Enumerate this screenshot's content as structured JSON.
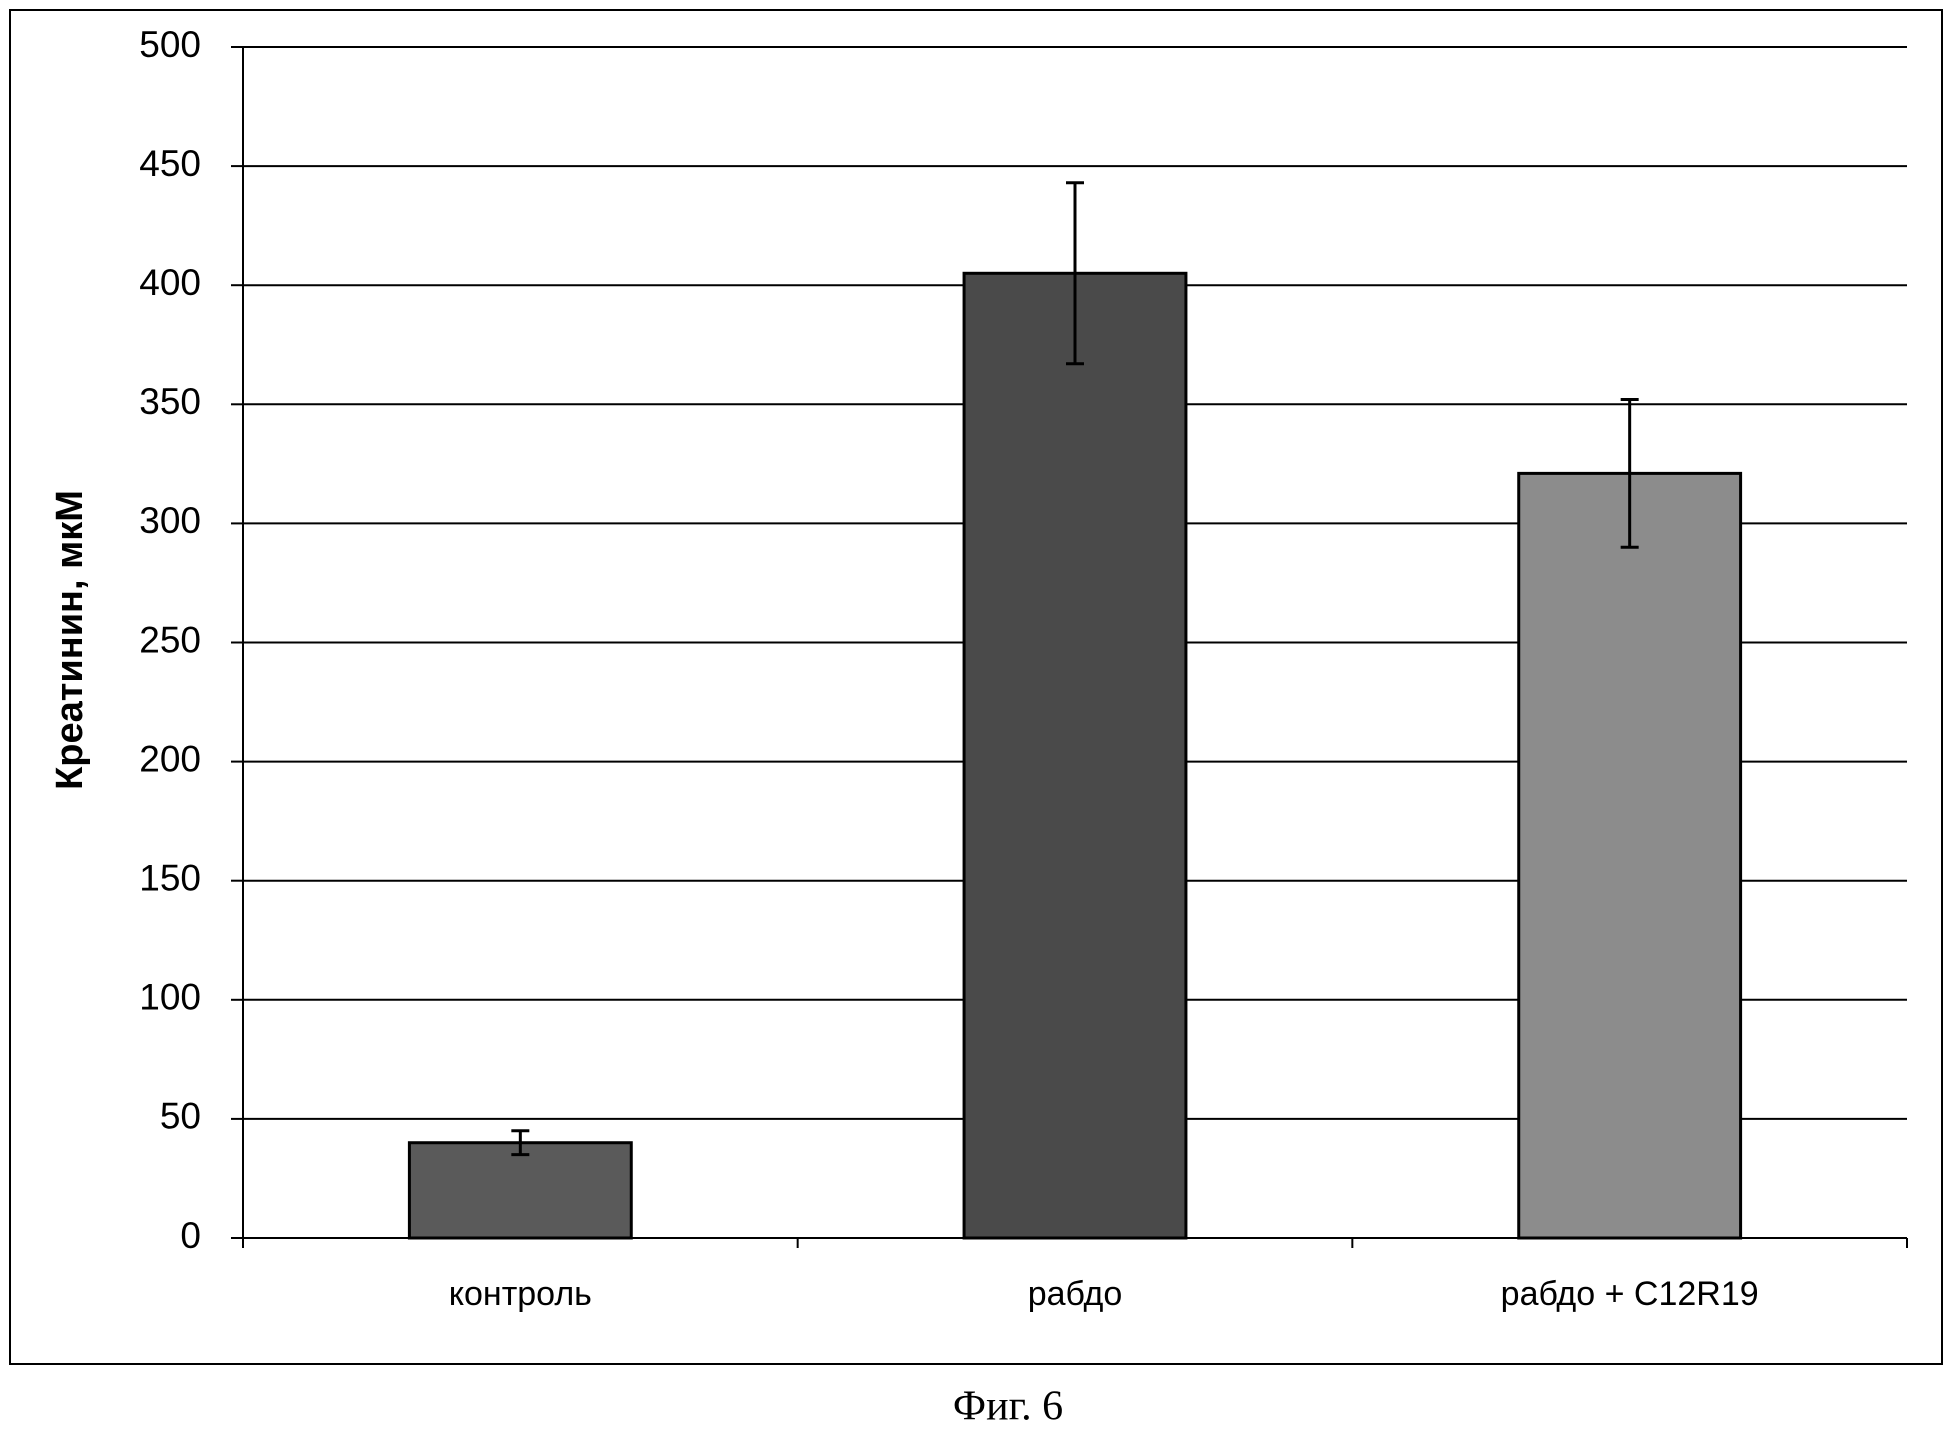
{
  "chart_data": {
    "type": "bar",
    "y_label": "Креатинин, мкМ",
    "caption": "Фиг. 6",
    "categories": [
      "контроль",
      "рабдо",
      "рабдо + C12R19"
    ],
    "values": [
      40,
      405,
      321
    ],
    "errors": [
      5,
      38,
      31
    ],
    "colors": [
      "#5a5a5a",
      "#4a4a4a",
      "#8c8c8c"
    ],
    "ylim": [
      0,
      500
    ],
    "yticks": [
      0,
      50,
      100,
      150,
      200,
      250,
      300,
      350,
      400,
      450,
      500
    ],
    "grid": true
  }
}
